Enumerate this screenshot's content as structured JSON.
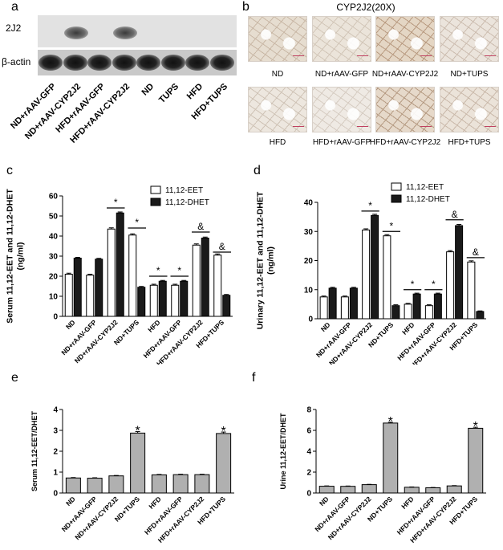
{
  "panels": {
    "a": "a",
    "b": "b",
    "c": "c",
    "d": "d",
    "e": "e",
    "f": "f"
  },
  "blot": {
    "row1_label": "2J2",
    "row2_label": "β-actin",
    "lanes": [
      "ND+rAAV-GFP",
      "ND+rAAV-CYP2J2",
      "HFD+rAAV-GFP",
      "HFD+rAAV-CYP2J2",
      "ND",
      "TUPS",
      "HFD",
      "HFD+TUPS"
    ]
  },
  "histology": {
    "title": "CYP2J2(20X)",
    "row1": [
      "ND",
      "ND+rAAV-GFP",
      "ND+rAAV-CYP2J2",
      "ND+TUPS"
    ],
    "row2": [
      "HFD",
      "HFD+rAAV-GFP",
      "HFD+rAAV-CYP2J2",
      "HFD+TUPS"
    ]
  },
  "chart_data": [
    {
      "panel": "c",
      "type": "bar",
      "categories": [
        "ND",
        "ND+rAAV-GFP",
        "ND+rAAV-CYP2J2",
        "ND+TUPS",
        "HFD",
        "HFD+rAAV-GFP",
        "HFD+rAAV-CYP2J2",
        "HFD+TUPS"
      ],
      "series": [
        {
          "name": "11,12-EET",
          "color": "#ffffff",
          "values": [
            21,
            20.5,
            43.5,
            40.5,
            15.5,
            15.5,
            35.5,
            30.5
          ],
          "errors": [
            0.5,
            0.5,
            0.6,
            0.6,
            0.5,
            0.5,
            0.6,
            0.6
          ]
        },
        {
          "name": "11,12-DHET",
          "color": "#1a1a1a",
          "values": [
            29,
            28.5,
            51.5,
            14.5,
            17.5,
            17.5,
            39,
            10.5
          ],
          "errors": [
            0.4,
            0.4,
            0.5,
            0.4,
            0.4,
            0.4,
            0.5,
            0.4
          ]
        }
      ],
      "ylabel": "Serum 11,12-EET and 11,12-DHET\n(ng/ml)",
      "yticks": [
        0,
        10,
        20,
        30,
        40,
        50,
        60
      ],
      "ylim": [
        0,
        60
      ],
      "legend": "top-right",
      "significance": [
        {
          "index": 2,
          "symbol": "*",
          "y": 54
        },
        {
          "index": 3,
          "symbol": "*",
          "y": 44
        },
        {
          "index": 4,
          "symbol": "*",
          "y": 20
        },
        {
          "index": 5,
          "symbol": "*",
          "y": 20
        },
        {
          "index": 6,
          "symbol": "&",
          "y": 42
        },
        {
          "index": 7,
          "symbol": "&",
          "y": 32
        }
      ]
    },
    {
      "panel": "d",
      "type": "bar",
      "categories": [
        "ND",
        "ND+rAAV-GFP",
        "ND+rAAV-CYP2J2",
        "ND+TUPS",
        "HFD",
        "HFD+rAAV-GFP",
        "HFD+rAAV-CYP2J2",
        "HFD+TUPS"
      ],
      "series": [
        {
          "name": "11,12-EET",
          "color": "#ffffff",
          "values": [
            7.5,
            7.5,
            30.5,
            28.5,
            5,
            4.5,
            23,
            19.5
          ],
          "errors": [
            0.3,
            0.3,
            0.4,
            0.4,
            0.3,
            0.3,
            0.4,
            0.4
          ]
        },
        {
          "name": "11,12-DHET",
          "color": "#1a1a1a",
          "values": [
            10.5,
            10.5,
            35.5,
            4.5,
            8.5,
            8.5,
            32,
            2.5
          ],
          "errors": [
            0.3,
            0.3,
            0.4,
            0.3,
            0.3,
            0.3,
            0.4,
            0.2
          ]
        }
      ],
      "ylabel": "Urinary 11,12-EET and 11,12-DHET\n(ng/ml)",
      "yticks": [
        0,
        10,
        20,
        30,
        40
      ],
      "ylim": [
        0,
        40
      ],
      "legend": "top-right",
      "significance": [
        {
          "index": 2,
          "symbol": "*",
          "y": 37
        },
        {
          "index": 3,
          "symbol": "*",
          "y": 30
        },
        {
          "index": 4,
          "symbol": "*",
          "y": 10
        },
        {
          "index": 5,
          "symbol": "*",
          "y": 10
        },
        {
          "index": 6,
          "symbol": "&",
          "y": 34
        },
        {
          "index": 7,
          "symbol": "&",
          "y": 21
        }
      ]
    },
    {
      "panel": "e",
      "type": "bar",
      "categories": [
        "ND",
        "ND+rAAV-GFP",
        "ND+rAAV-CYP2J2",
        "ND+TUPS",
        "HFD",
        "HFD+rAAV-GFP",
        "HFD+rAAV-CYP2J2",
        "HFD+TUPS"
      ],
      "series": [
        {
          "color": "#b0b0b0",
          "values": [
            0.72,
            0.71,
            0.82,
            2.87,
            0.87,
            0.88,
            0.88,
            2.85
          ],
          "errors": [
            0.02,
            0.02,
            0.02,
            0.07,
            0.02,
            0.02,
            0.02,
            0.07
          ]
        }
      ],
      "ylabel": "Serum 11,12-EET/DHET",
      "yticks": [
        0,
        1,
        2,
        3,
        4
      ],
      "ylim": [
        0,
        4
      ],
      "significance": [
        {
          "index": 3,
          "symbol": "*"
        },
        {
          "index": 7,
          "symbol": "*"
        }
      ]
    },
    {
      "panel": "f",
      "type": "bar",
      "categories": [
        "ND",
        "ND+rAAV-GFP",
        "ND+rAAV-CYP2J2",
        "ND+TUPS",
        "HFD",
        "HFD+rAAV-GFP",
        "HFD+rAAV-CYP2J2",
        "HFD+TUPS"
      ],
      "series": [
        {
          "color": "#b0b0b0",
          "values": [
            0.65,
            0.64,
            0.8,
            6.7,
            0.55,
            0.5,
            0.68,
            6.2
          ],
          "errors": [
            0.03,
            0.03,
            0.03,
            0.08,
            0.03,
            0.03,
            0.03,
            0.1
          ]
        }
      ],
      "ylabel": "Urine 11,12-EET/DHET",
      "yticks": [
        0,
        2,
        4,
        6,
        8
      ],
      "ylim": [
        0,
        8
      ],
      "significance": [
        {
          "index": 3,
          "symbol": "*"
        },
        {
          "index": 7,
          "symbol": "*"
        }
      ]
    }
  ]
}
